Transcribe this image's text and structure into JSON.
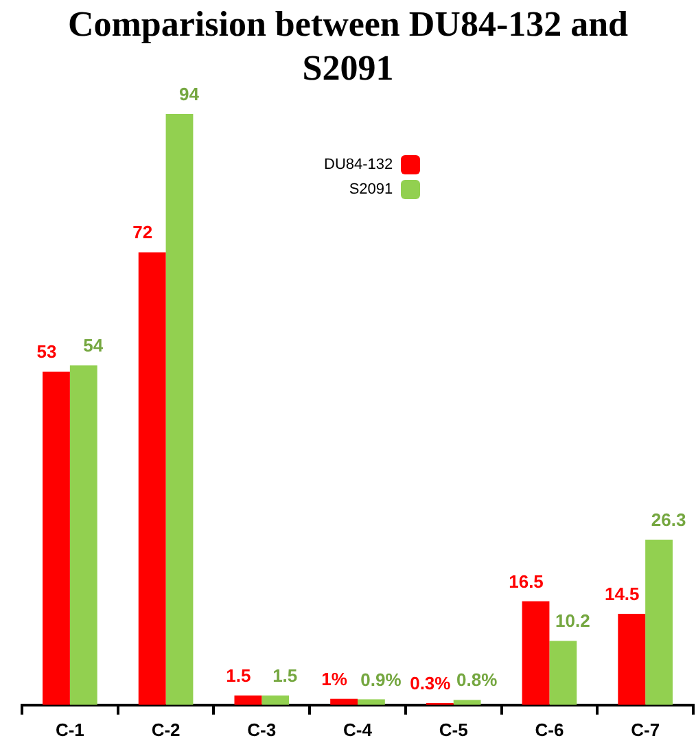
{
  "chart_data": {
    "type": "bar",
    "title": "Comparision between DU84-132 and S2091",
    "categories": [
      "C-1",
      "C-2",
      "C-3",
      "C-4",
      "C-5",
      "C-6",
      "C-7"
    ],
    "grid": false,
    "legend": "top",
    "series": [
      {
        "name": "DU84-132",
        "color": "#ff0000",
        "values": [
          53,
          72,
          1.5,
          1,
          0.3,
          16.5,
          14.5
        ],
        "value_labels": [
          "53",
          "72",
          "1.5",
          "1%",
          "0.3%",
          "16.5",
          "14.5"
        ]
      },
      {
        "name": "S2091",
        "color": "#92d050",
        "values": [
          54,
          94,
          1.5,
          0.9,
          0.8,
          10.2,
          26.3
        ],
        "value_labels": [
          "54",
          "94",
          "1.5",
          "0.9%",
          "0.8%",
          "10.2",
          "26.3"
        ]
      }
    ]
  }
}
